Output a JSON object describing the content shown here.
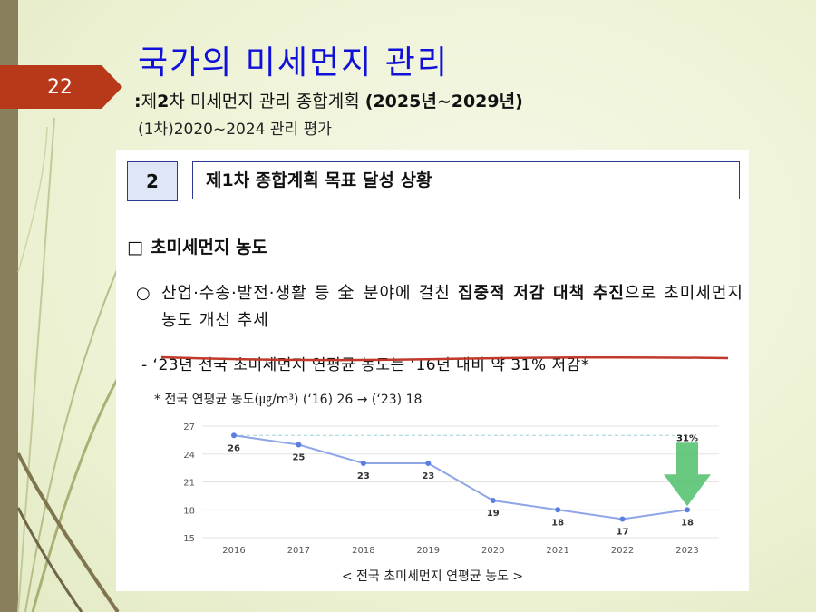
{
  "slide": {
    "number": "22",
    "title": "국가의 미세먼지 관리",
    "subtitle_prefix": ":",
    "subtitle_mid": "제",
    "subtitle_num": "2",
    "subtitle_main": "차 미세먼지 관리 종합계획 ",
    "subtitle_years": "(2025년~2029년)",
    "subtitle2": "(1차)2020~2024 관리 평가"
  },
  "panel": {
    "section_number": "2",
    "section_title": "제1차 종합계획 목표 달성 상황",
    "sub_head_glyph": "□",
    "sub_head": "초미세먼지 농도",
    "bullet": "○",
    "para_part1": "산업·수송·발전·생활 등 全 분야에 걸친 ",
    "para_bold": "집중적 저감 대책 추진",
    "para_part2": "으로 초미세먼지 농도 개선 추세",
    "dash_text": "- ‘23년 전국 초미세먼지 연평균 농도는 ‘16년 대비 약 31% 저감*",
    "footnote": "* 전국 연평균 농도(㎍/m³) (‘16) 26 → (‘23) 18",
    "caption": "< 전국 초미세먼지 연평균 농도 >"
  },
  "colors": {
    "title": "#1010d8",
    "slide_number_bg": "#b8391a",
    "line": "#8fa6e6",
    "point": "#5b7fe0",
    "strike": "#c0392b",
    "arrow": "#4fc06b"
  },
  "chart_data": {
    "type": "line",
    "categories": [
      "2016",
      "2017",
      "2018",
      "2019",
      "2020",
      "2021",
      "2022",
      "2023"
    ],
    "series": [
      {
        "values": [
          26,
          25,
          23,
          23,
          19,
          18,
          17,
          18
        ]
      }
    ],
    "data_labels": [
      "26",
      "25",
      "23",
      "23",
      "19",
      "18",
      "17",
      "18"
    ],
    "yticks": [
      "27",
      "24",
      "21",
      "18",
      "15"
    ],
    "ylim": [
      15,
      27
    ],
    "annotation": "31%",
    "grid": true,
    "reference_line_value": 26
  }
}
